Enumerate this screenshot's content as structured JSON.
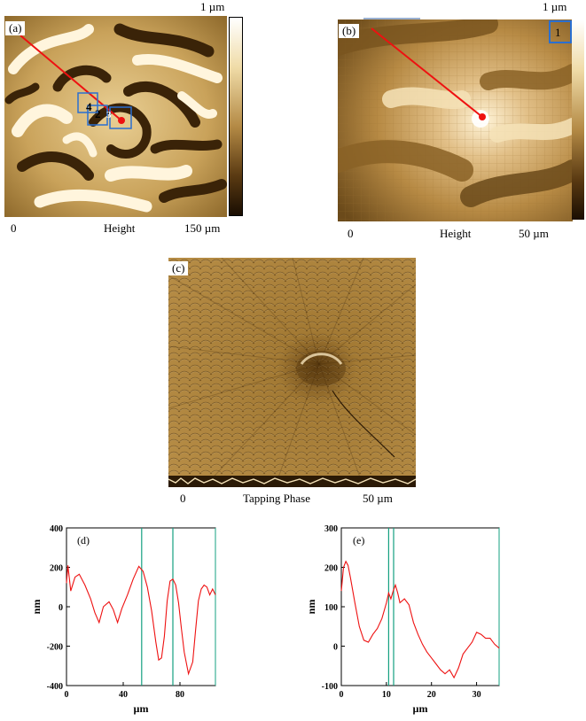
{
  "figure": {
    "panel_a": {
      "tag": "(a)",
      "scale_top": "1 µm",
      "axis_start": "0",
      "axis_label": "Height",
      "axis_end": "150 µm",
      "box_labels": [
        "4",
        "2",
        "3"
      ]
    },
    "panel_b": {
      "tag": "(b)",
      "scale_top": "1 µm",
      "axis_start": "0",
      "axis_label": "Height",
      "axis_end": "50 µm",
      "box_label": "1"
    },
    "panel_c": {
      "tag": "(c)",
      "axis_start": "0",
      "axis_label": "Tapping Phase",
      "axis_end": "50 µm"
    },
    "colors": {
      "afm_dark": "#2e1a05",
      "afm_mid": "#9a7030",
      "afm_light": "#fff8e6",
      "profile_line": "#ee1111",
      "box": "#2a6fd0",
      "marker": "#15a080"
    }
  },
  "chart_data": [
    {
      "type": "line",
      "panel": "(d)",
      "xlabel": "µm",
      "ylabel": "nm",
      "xlim": [
        0,
        105
      ],
      "ylim": [
        -400,
        400
      ],
      "xticks": [
        "0",
        "40",
        "80"
      ],
      "yticks": [
        "400",
        "200",
        "0",
        "-200",
        "-400"
      ],
      "x": [
        0,
        1,
        3,
        6,
        9,
        13,
        17,
        20,
        23,
        26,
        30,
        33,
        36,
        39,
        43,
        47,
        51,
        54,
        57,
        60,
        63,
        65,
        67,
        69,
        71,
        73,
        75,
        77,
        79,
        81,
        83,
        86,
        89,
        91,
        93,
        95,
        97,
        99,
        101,
        103,
        105
      ],
      "y": [
        120,
        210,
        80,
        150,
        165,
        110,
        40,
        -30,
        -80,
        0,
        25,
        -15,
        -80,
        -10,
        60,
        140,
        205,
        180,
        100,
        -20,
        -180,
        -270,
        -260,
        -150,
        30,
        130,
        140,
        110,
        20,
        -110,
        -230,
        -340,
        -280,
        -120,
        30,
        90,
        110,
        100,
        60,
        90,
        60
      ],
      "markers_x": [
        53,
        75
      ]
    },
    {
      "type": "line",
      "panel": "(e)",
      "xlabel": "µm",
      "ylabel": "nm",
      "xlim": [
        0,
        35
      ],
      "ylim": [
        -100,
        300
      ],
      "xticks": [
        "0",
        "10",
        "20",
        "30"
      ],
      "yticks": [
        "300",
        "200",
        "100",
        "0",
        "-100"
      ],
      "x": [
        0,
        0.5,
        1,
        1.5,
        2,
        3,
        4,
        5,
        6,
        7,
        8,
        9,
        10,
        10.5,
        11,
        11.5,
        12,
        12.5,
        13,
        14,
        15,
        16,
        17,
        18,
        19,
        20,
        21,
        22,
        23,
        24,
        25,
        26,
        27,
        28,
        29,
        30,
        31,
        32,
        33,
        34,
        35
      ],
      "y": [
        140,
        200,
        215,
        205,
        175,
        110,
        50,
        15,
        10,
        30,
        45,
        70,
        110,
        135,
        120,
        140,
        155,
        135,
        110,
        120,
        105,
        60,
        30,
        5,
        -15,
        -30,
        -45,
        -60,
        -70,
        -60,
        -80,
        -55,
        -20,
        -5,
        10,
        35,
        30,
        20,
        20,
        5,
        -5
      ],
      "markers_x": [
        10.5,
        11.6
      ]
    }
  ]
}
